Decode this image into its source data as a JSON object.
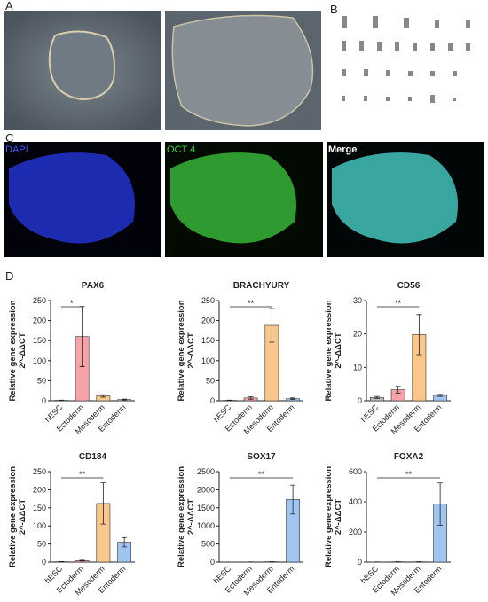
{
  "panels": [
    "A",
    "B",
    "C",
    "D"
  ],
  "image_labels": [
    "DAPI",
    "OCT 4",
    "Merge"
  ],
  "chart_data": [
    {
      "type": "bar",
      "title": "PAX6",
      "ylabel": [
        "Relative gene expression",
        "2^-ΔΔCT"
      ],
      "categories": [
        "hESC",
        "Ectoderm",
        "Mesoderm",
        "Entoderm"
      ],
      "values": [
        1,
        160,
        12,
        3
      ],
      "errors": [
        0.5,
        75,
        3,
        1
      ],
      "colors": [
        "#bdbdbd",
        "#f4a3a8",
        "#f9c78a",
        "#9fc5f0"
      ],
      "ylim": [
        0,
        250
      ],
      "yticks": [
        0,
        50,
        100,
        150,
        200,
        250
      ],
      "annotation": {
        "text": "*",
        "from": "hESC",
        "to": "Ectoderm"
      }
    },
    {
      "type": "bar",
      "title": "BRACHYURY",
      "ylabel": [
        "Relative gene expression",
        "2^-ΔΔCT"
      ],
      "categories": [
        "hESC",
        "Ectoderm",
        "Mesoderm",
        "Entoderm"
      ],
      "values": [
        1,
        7,
        188,
        5
      ],
      "errors": [
        0.5,
        3,
        42,
        2
      ],
      "colors": [
        "#bdbdbd",
        "#f4a3a8",
        "#f9c78a",
        "#9fc5f0"
      ],
      "ylim": [
        0,
        250
      ],
      "yticks": [
        0,
        50,
        100,
        150,
        200,
        250
      ],
      "annotation": {
        "text": "**",
        "from": "hESC",
        "to": "Mesoderm"
      }
    },
    {
      "type": "bar",
      "title": "CD56",
      "ylabel": [
        "Relative gene expression",
        "2^-ΔΔCT"
      ],
      "categories": [
        "hESC",
        "Ectoderm",
        "Mesoderm",
        "Entoderm"
      ],
      "values": [
        1,
        3.3,
        19.8,
        1.6
      ],
      "errors": [
        0.3,
        1,
        6,
        0.3
      ],
      "colors": [
        "#bdbdbd",
        "#f4a3a8",
        "#f9c78a",
        "#9fc5f0"
      ],
      "ylim": [
        0,
        30
      ],
      "yticks": [
        0,
        10,
        20,
        30
      ],
      "annotation": {
        "text": "**",
        "from": "hESC",
        "to": "Mesoderm"
      }
    },
    {
      "type": "bar",
      "title": "CD184",
      "ylabel": [
        "Relative gene expression",
        "2^-ΔΔCT"
      ],
      "categories": [
        "hESC",
        "Ectoderm",
        "Mesoderm",
        "Entoderm"
      ],
      "values": [
        1,
        4,
        162,
        55
      ],
      "errors": [
        0.5,
        1,
        57,
        13
      ],
      "colors": [
        "#bdbdbd",
        "#f4a3a8",
        "#f9c78a",
        "#9fc5f0"
      ],
      "ylim": [
        0,
        250
      ],
      "yticks": [
        0,
        50,
        100,
        150,
        200,
        250
      ],
      "annotation": {
        "text": "**",
        "from": "hESC",
        "to": "Mesoderm"
      }
    },
    {
      "type": "bar",
      "title": "SOX17",
      "ylabel": [
        "Relative gene expression",
        "2^-ΔΔCT"
      ],
      "categories": [
        "hESC",
        "Ectoderm",
        "Mesoderm",
        "Entoderm"
      ],
      "values": [
        1,
        5,
        10,
        1730
      ],
      "errors": [
        0.5,
        2,
        3,
        400
      ],
      "colors": [
        "#bdbdbd",
        "#f4a3a8",
        "#f9c78a",
        "#9fc5f0"
      ],
      "ylim": [
        0,
        2500
      ],
      "yticks": [
        0,
        500,
        1000,
        1500,
        2000,
        2500
      ],
      "annotation": {
        "text": "**",
        "from": "hESC",
        "to": "Entoderm"
      }
    },
    {
      "type": "bar",
      "title": "FOXA2",
      "ylabel": [
        "Relative gene expression",
        "2^-ΔΔCT"
      ],
      "categories": [
        "hESC",
        "Ectoderm",
        "Mesoderm",
        "Entoderm"
      ],
      "values": [
        1,
        2,
        2,
        385
      ],
      "errors": [
        0.5,
        1,
        1,
        140
      ],
      "colors": [
        "#bdbdbd",
        "#f4a3a8",
        "#f9c78a",
        "#9fc5f0"
      ],
      "ylim": [
        0,
        600
      ],
      "yticks": [
        0,
        200,
        400,
        600
      ],
      "annotation": {
        "text": "**",
        "from": "hESC",
        "to": "Entoderm"
      }
    }
  ]
}
